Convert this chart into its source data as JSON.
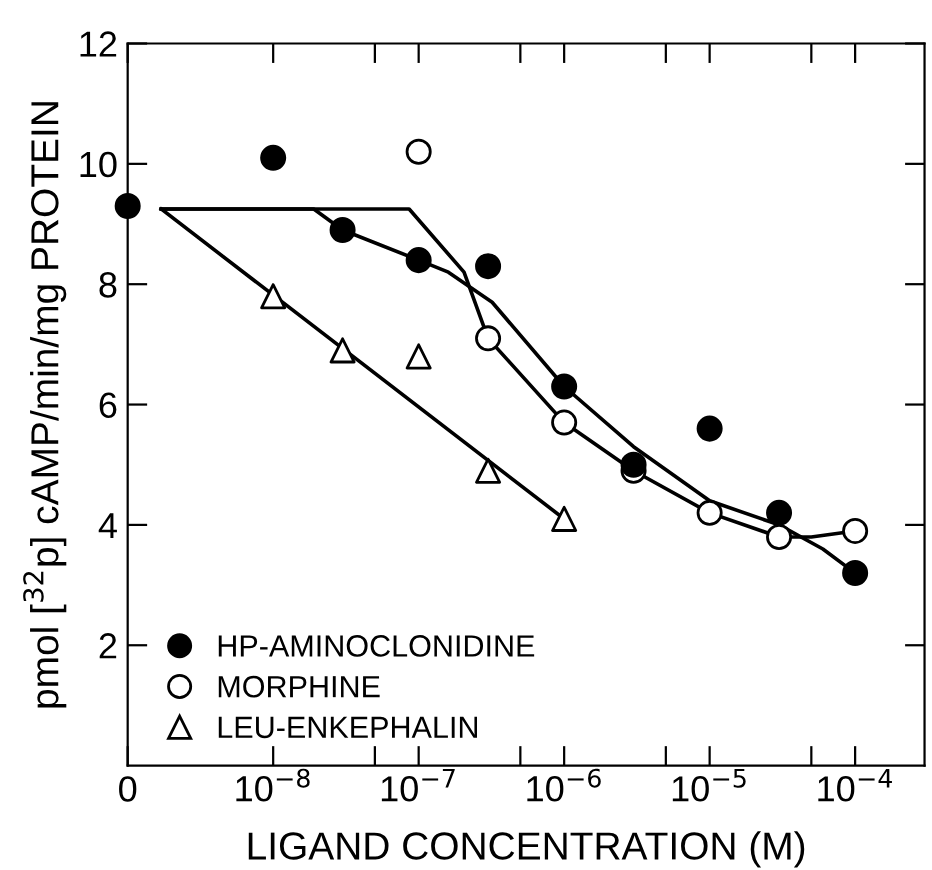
{
  "chart_data": {
    "type": "scatter",
    "xlabel": "LIGAND CONCENTRATION (M)",
    "ylabel": "pmol [$^{32}$p] cAMP/min/mg PROTEIN",
    "log": "x",
    "xlim": [
      1e-09,
      0.0003
    ],
    "ylim": [
      0,
      12
    ],
    "xticks": [
      {
        "value": 1e-09,
        "label": "0"
      },
      {
        "value": 1e-08,
        "label": "10$^{−8}$"
      },
      {
        "value": 5e-08,
        "label": null
      },
      {
        "value": 1e-07,
        "label": "10$^{−7}$"
      },
      {
        "value": 5e-07,
        "label": null
      },
      {
        "value": 1e-06,
        "label": "10$^{−6}$"
      },
      {
        "value": 5e-06,
        "label": null
      },
      {
        "value": 1e-05,
        "label": "10$^{−5}$"
      },
      {
        "value": 5e-05,
        "label": null
      },
      {
        "value": 0.0001,
        "label": "10$^{−4}$"
      }
    ],
    "yticks": [
      2,
      4,
      6,
      8,
      10,
      12
    ],
    "grid": false,
    "legend": "bottom left",
    "series": [
      {
        "name": "HP-AMINOCLONIDINE",
        "marker": "circle",
        "color": "#000000",
        "x": [
          1e-09,
          1e-08,
          3e-08,
          1e-07,
          3e-07,
          1e-06,
          3e-06,
          1e-05,
          3e-05,
          0.0001
        ],
        "values": [
          9.3,
          10.1,
          8.9,
          8.4,
          8.3,
          6.3,
          5.0,
          5.6,
          4.2,
          3.2
        ]
      },
      {
        "name": "MORPHINE",
        "marker": "circle",
        "color": "#ffffff",
        "x": [
          1e-07,
          3e-07,
          1e-06,
          3e-06,
          1e-05,
          3e-05,
          0.0001
        ],
        "values": [
          10.2,
          7.1,
          5.7,
          4.9,
          4.2,
          3.8,
          3.9
        ]
      },
      {
        "name": "LEU-ENKEPHALIN",
        "marker": "triangle",
        "color": "#ffffff",
        "x": [
          1e-08,
          3e-08,
          1e-07,
          3e-07,
          1e-06
        ],
        "values": [
          7.8,
          6.9,
          6.8,
          4.9,
          4.1
        ]
      },
      {
        "type": "line",
        "color": "#000000",
        "line_style": "solid",
        "x": [
          1.7e-09,
          1.9e-08,
          3e-08,
          1e-07,
          1.6e-07,
          3.2e-07,
          1e-06,
          3e-06,
          1e-05,
          3e-05,
          6e-05,
          0.0001
        ],
        "values": [
          9.25,
          9.25,
          8.9,
          8.4,
          8.2,
          7.7,
          6.3,
          5.3,
          4.4,
          4.0,
          3.6,
          3.2
        ]
      },
      {
        "type": "line",
        "color": "#000000",
        "line_style": "solid",
        "x": [
          1.7e-09,
          8.6e-08,
          2.05e-07,
          3e-07,
          1e-06,
          3e-06,
          1e-05,
          3e-05,
          5e-05,
          0.0001
        ],
        "values": [
          9.25,
          9.25,
          8.2,
          7.1,
          5.7,
          4.9,
          4.2,
          3.8,
          3.8,
          3.9
        ]
      },
      {
        "type": "line",
        "color": "#000000",
        "line_style": "solid",
        "x": [
          1.7e-09,
          1e-06
        ],
        "values": [
          9.25,
          4.1
        ]
      }
    ]
  }
}
